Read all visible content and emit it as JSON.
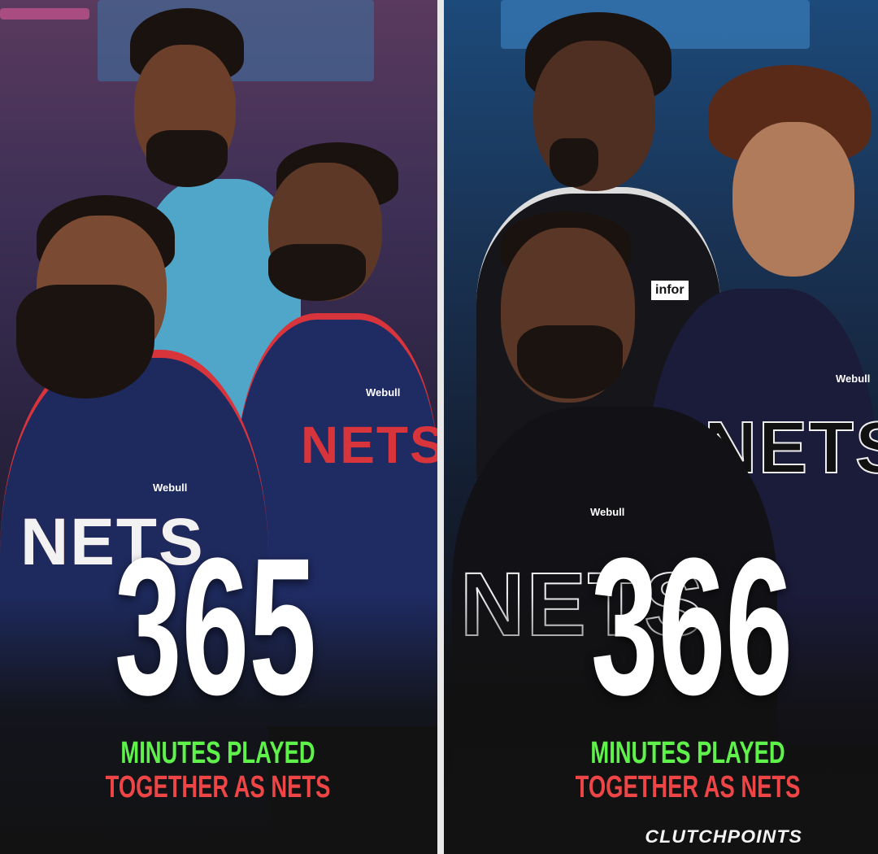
{
  "left": {
    "number": "365",
    "caption_line1": "MINUTES PLAYED",
    "caption_line2": "TOGETHER AS NETS",
    "jersey_text": "NETS",
    "sponsor": "Webull"
  },
  "right": {
    "number": "366",
    "caption_line1": "MINUTES PLAYED",
    "caption_line2": "TOGETHER AS NETS",
    "jersey_text": "NETS",
    "sponsor": "Webull",
    "sponsor2": "infor"
  },
  "brand": "CLUTCHPOINTS",
  "colors": {
    "green": "#5ef24a",
    "red": "#ee4646",
    "background": "#121212"
  }
}
